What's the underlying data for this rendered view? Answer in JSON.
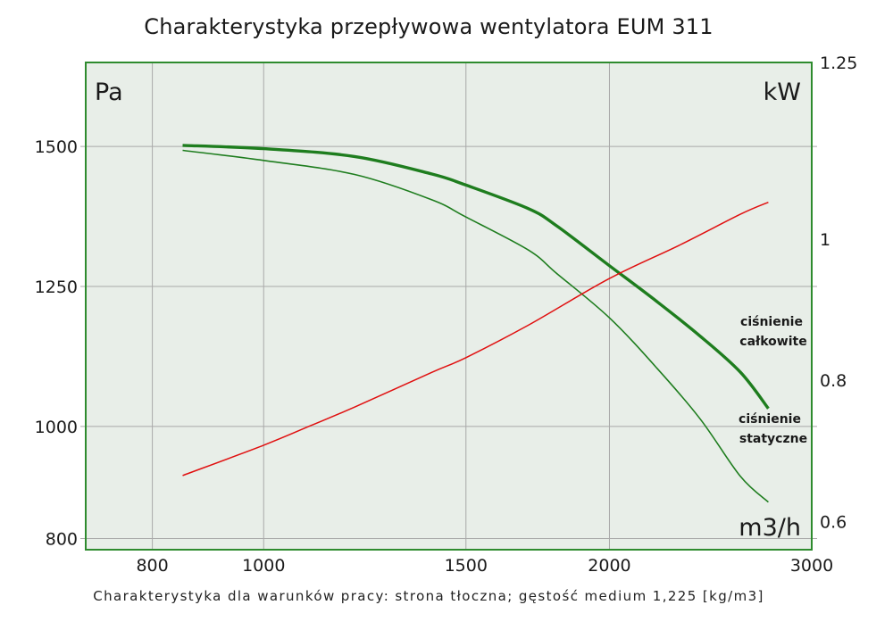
{
  "chart_data": {
    "type": "line",
    "title": "Charakterystyka przepływowa wentylatora EUM 311",
    "footnote": "Charakterystyka dla warunków pracy: strona tłoczna; gęstość medium 1,225 [kg/m3]",
    "x_scale": "log",
    "xlim": [
      700,
      3000
    ],
    "ylim_left": [
      780,
      1650
    ],
    "ylim_right": [
      0.56,
      1.25
    ],
    "x_ticks": [
      800,
      1000,
      1500,
      2000,
      3000
    ],
    "y_ticks_left": [
      800,
      1000,
      1250,
      1500
    ],
    "y_ticks_right": [
      0.6,
      0.8,
      1,
      1.25
    ],
    "unit_left": "Pa",
    "unit_right": "kW",
    "unit_x": "m3/h",
    "grid": true,
    "colors": {
      "plot_background": "#e8eee8",
      "frame": "#2e8b2e",
      "grid": "#a9a9a9",
      "pressure": "#1e7d1e",
      "power": "#e01010"
    },
    "series": [
      {
        "key": "calkowite",
        "axis": "left",
        "label_lines": [
          "ciśnienie",
          "całkowite"
        ],
        "x": [
          850,
          1000,
          1200,
          1400,
          1500,
          1700,
          1800,
          2000,
          2200,
          2400,
          2600,
          2750
        ],
        "y": [
          1502,
          1496,
          1482,
          1451,
          1431,
          1389,
          1358,
          1287,
          1223,
          1161,
          1097,
          1032
        ]
      },
      {
        "key": "statyczne",
        "axis": "left",
        "label_lines": [
          "ciśnienie",
          "statyczne"
        ],
        "x": [
          850,
          1000,
          1200,
          1400,
          1500,
          1700,
          1800,
          2000,
          2200,
          2400,
          2600,
          2750
        ],
        "y": [
          1493,
          1475,
          1450,
          1405,
          1374,
          1315,
          1273,
          1194,
          1104,
          1013,
          911,
          865
        ]
      },
      {
        "key": "moc",
        "axis": "right",
        "x": [
          850,
          1000,
          1100,
          1200,
          1400,
          1500,
          1700,
          2000,
          2300,
          2600,
          2750
        ],
        "y": [
          0.665,
          0.708,
          0.736,
          0.762,
          0.811,
          0.832,
          0.878,
          0.944,
          0.991,
          1.035,
          1.052
        ]
      }
    ]
  }
}
